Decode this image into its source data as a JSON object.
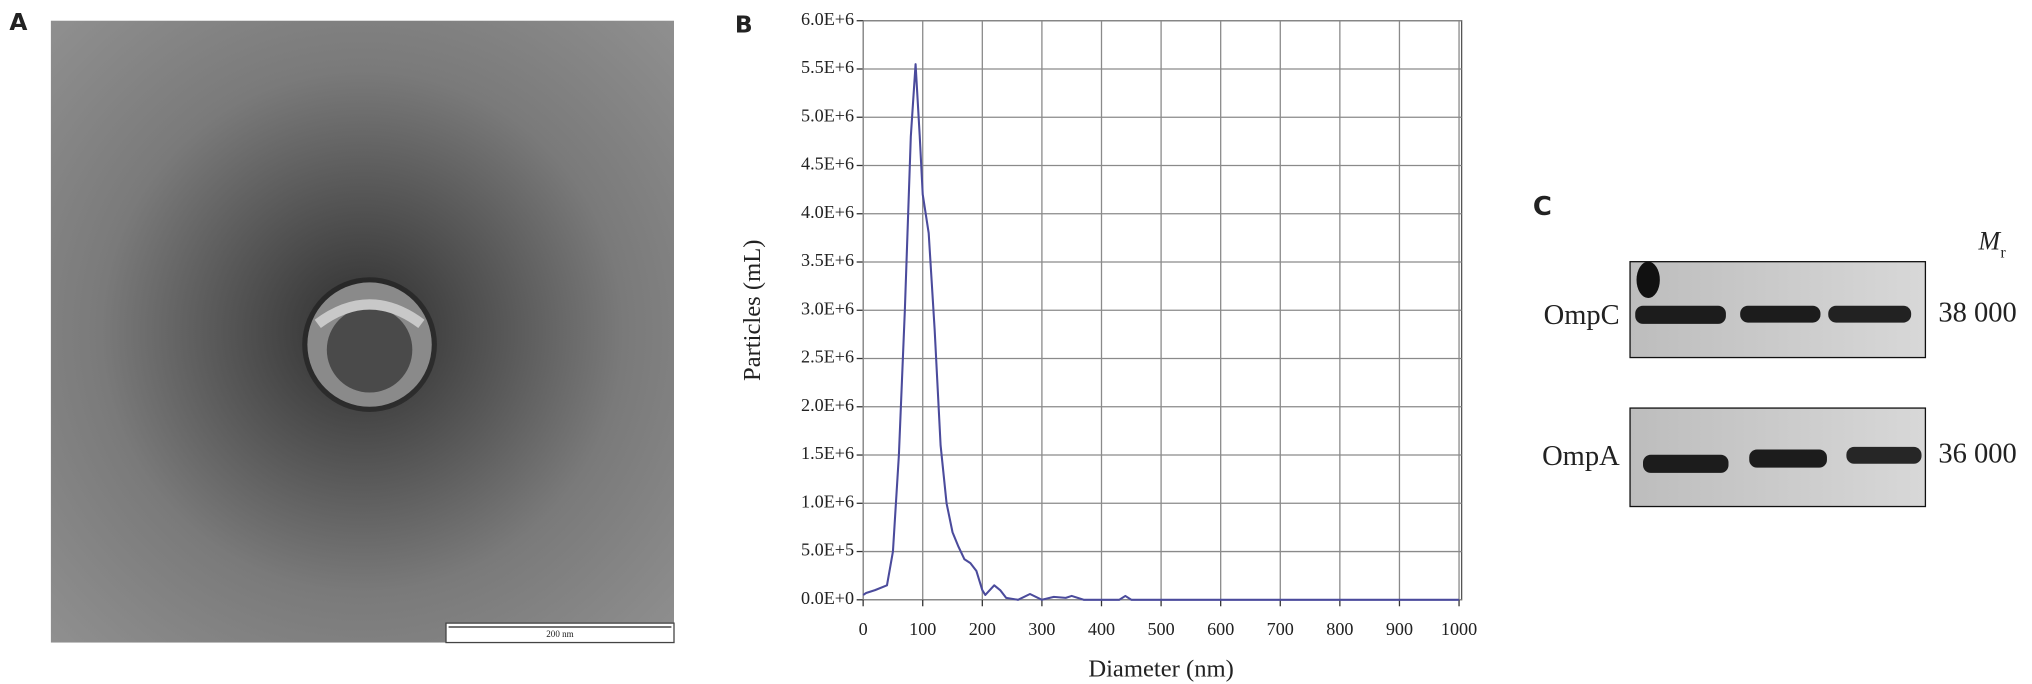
{
  "panel_a": {
    "label": "A",
    "scale_bar": "200 nm"
  },
  "panel_b": {
    "label": "B"
  },
  "panel_c": {
    "label": "C",
    "mr_symbol": "M",
    "mr_subscript": "r",
    "rows": [
      {
        "protein": "OmpC",
        "mass": "38 000"
      },
      {
        "protein": "OmpA",
        "mass": "36 000"
      }
    ]
  },
  "chart_data": {
    "type": "line",
    "x_label": "Diameter (nm)",
    "y_label": "Particles (mL)",
    "x": [
      0,
      5,
      20,
      40,
      50,
      60,
      70,
      80,
      88,
      95,
      100,
      110,
      120,
      130,
      140,
      150,
      160,
      170,
      180,
      190,
      200,
      205,
      220,
      230,
      240,
      260,
      280,
      300,
      320,
      340,
      350,
      370,
      430,
      440,
      450,
      1000
    ],
    "series": [
      {
        "color": "#4b4b9c",
        "values": [
          50000,
          70000,
          100000,
          150000,
          500000,
          1500000,
          3000000,
          4800000,
          5550000,
          4800000,
          4200000,
          3800000,
          2800000,
          1600000,
          1000000,
          700000,
          550000,
          420000,
          380000,
          300000,
          100000,
          50000,
          150000,
          100000,
          20000,
          0,
          60000,
          0,
          30000,
          20000,
          40000,
          0,
          0,
          40000,
          0,
          0
        ]
      }
    ],
    "xlim": [
      0,
      1000
    ],
    "xticks": [
      0,
      100,
      200,
      300,
      400,
      500,
      600,
      700,
      800,
      900,
      1000
    ],
    "ylim": [
      0,
      6000000
    ],
    "yticks": [
      {
        "value": 0,
        "label": "0.0E+0"
      },
      {
        "value": 500000,
        "label": "5.0E+5"
      },
      {
        "value": 1000000,
        "label": "1.0E+6"
      },
      {
        "value": 1500000,
        "label": "1.5E+6"
      },
      {
        "value": 2000000,
        "label": "2.0E+6"
      },
      {
        "value": 2500000,
        "label": "2.5E+6"
      },
      {
        "value": 3000000,
        "label": "3.0E+6"
      },
      {
        "value": 3500000,
        "label": "3.5E+6"
      },
      {
        "value": 4000000,
        "label": "4.0E+6"
      },
      {
        "value": 4500000,
        "label": "4.5E+6"
      },
      {
        "value": 5000000,
        "label": "5.0E+6"
      },
      {
        "value": 5500000,
        "label": "5.5E+6"
      },
      {
        "value": 6000000,
        "label": "6.0E+6"
      }
    ],
    "grid": true
  }
}
